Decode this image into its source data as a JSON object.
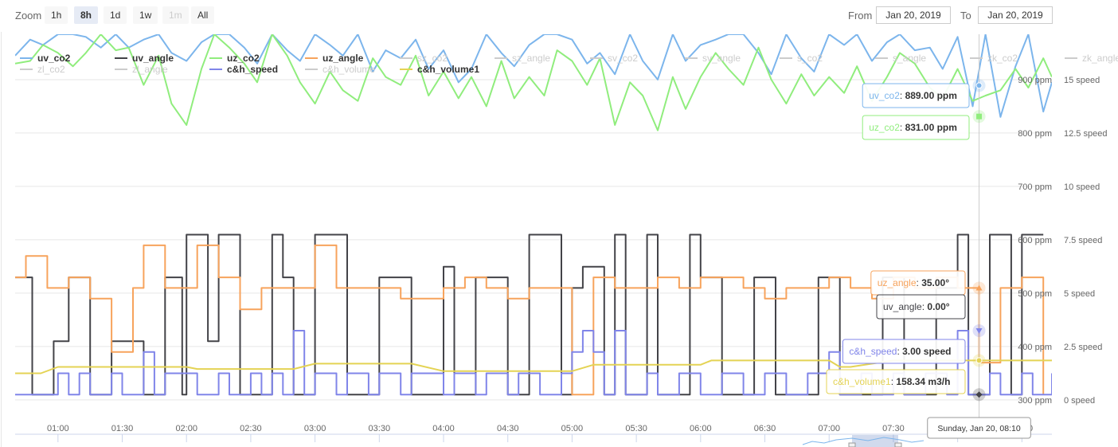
{
  "toolbar": {
    "zoom_label": "Zoom",
    "zoom_buttons": [
      {
        "label": "1h",
        "state": "normal"
      },
      {
        "label": "8h",
        "state": "active"
      },
      {
        "label": "1d",
        "state": "normal"
      },
      {
        "label": "1w",
        "state": "normal"
      },
      {
        "label": "1m",
        "state": "disabled"
      },
      {
        "label": "All",
        "state": "normal"
      }
    ],
    "from_label": "From",
    "from_value": "Jan 20, 2019",
    "to_label": "To",
    "to_value": "Jan 20, 2019"
  },
  "chart_data": {
    "type": "line",
    "title": "",
    "legend": {
      "placement": "top-left",
      "items": [
        {
          "name": "uv_co2",
          "color": "#7cb5ec",
          "visible": true
        },
        {
          "name": "uv_angle",
          "color": "#434348",
          "visible": true
        },
        {
          "name": "uz_co2",
          "color": "#90ed7d",
          "visible": true
        },
        {
          "name": "uz_angle",
          "color": "#f7a35c",
          "visible": true
        },
        {
          "name": "sz_co2",
          "color": "#cccccc",
          "visible": false
        },
        {
          "name": "sz_angle",
          "color": "#cccccc",
          "visible": false
        },
        {
          "name": "sv_co2",
          "color": "#cccccc",
          "visible": false
        },
        {
          "name": "sv_angle",
          "color": "#cccccc",
          "visible": false
        },
        {
          "name": "s_co2",
          "color": "#cccccc",
          "visible": false
        },
        {
          "name": "s_angle",
          "color": "#cccccc",
          "visible": false
        },
        {
          "name": "zk_co2",
          "color": "#cccccc",
          "visible": false
        },
        {
          "name": "zk_angle",
          "color": "#cccccc",
          "visible": false
        },
        {
          "name": "zl_co2",
          "color": "#cccccc",
          "visible": false
        },
        {
          "name": "zl_angle",
          "color": "#cccccc",
          "visible": false
        },
        {
          "name": "c&h_speed",
          "color": "#8085e9",
          "visible": true
        },
        {
          "name": "c&h_volume",
          "color": "#cccccc",
          "visible": false
        },
        {
          "name": "c&h_volume1",
          "color": "#e4d354",
          "visible": true
        }
      ]
    },
    "x_axis": {
      "type": "datetime",
      "range": [
        "00:40",
        "08:44"
      ],
      "ticks": [
        "01:00",
        "01:30",
        "02:00",
        "02:30",
        "03:00",
        "03:30",
        "04:00",
        "04:30",
        "05:00",
        "05:30",
        "06:00",
        "06:30",
        "07:00",
        "07:30",
        "08:00",
        "08:30"
      ]
    },
    "y_axes": [
      {
        "unit": "ppm",
        "range": [
          270,
          985
        ],
        "ticks": [
          "300 ppm",
          "400 ppm",
          "500 ppm",
          "600 ppm",
          "700 ppm",
          "800 ppm",
          "900 ppm"
        ]
      },
      {
        "unit": "speed",
        "range": [
          -1,
          16.9
        ],
        "ticks": [
          "0 speed",
          "2.5 speed",
          "5 speed",
          "7.5 speed",
          "10 speed",
          "12.5 speed",
          "15 speed"
        ]
      }
    ],
    "grid": true,
    "series": [
      {
        "name": "uv_co2",
        "unit": "ppm",
        "axis": "ppm",
        "color": "#7cb5ec",
        "type": "line",
        "x": [
          "00:40",
          "00:47",
          "00:53",
          "01:00",
          "01:07",
          "01:13",
          "01:20",
          "01:27",
          "01:33",
          "01:40",
          "01:47",
          "01:53",
          "02:00",
          "02:07",
          "02:13",
          "02:20",
          "02:27",
          "02:33",
          "02:40",
          "02:47",
          "02:53",
          "03:00",
          "03:07",
          "03:13",
          "03:20",
          "03:27",
          "03:33",
          "03:40",
          "03:47",
          "03:53",
          "04:00",
          "04:07",
          "04:13",
          "04:20",
          "04:27",
          "04:33",
          "04:40",
          "04:47",
          "04:53",
          "05:00",
          "05:07",
          "05:13",
          "05:20",
          "05:27",
          "05:33",
          "05:40",
          "05:47",
          "05:53",
          "06:00",
          "06:07",
          "06:13",
          "06:20",
          "06:27",
          "06:33",
          "06:40",
          "06:47",
          "06:53",
          "07:00",
          "07:07",
          "07:13",
          "07:20",
          "07:27",
          "07:33",
          "07:40",
          "07:47",
          "07:53",
          "08:00",
          "08:07",
          "08:13",
          "08:20",
          "08:27",
          "08:33",
          "08:40",
          "08:44"
        ],
        "y": [
          945,
          975,
          965,
          985,
          985,
          980,
          960,
          985,
          960,
          975,
          985,
          950,
          935,
          970,
          985,
          985,
          960,
          930,
          985,
          955,
          935,
          985,
          965,
          945,
          985,
          915,
          955,
          940,
          975,
          920,
          955,
          895,
          920,
          985,
          950,
          925,
          965,
          985,
          985,
          975,
          930,
          950,
          910,
          985,
          935,
          900,
          985,
          935,
          965,
          975,
          985,
          985,
          950,
          910,
          985,
          940,
          915,
          985,
          965,
          985,
          935,
          970,
          985,
          955,
          960,
          920,
          980,
          850,
          985,
          830,
          925,
          985,
          840,
          895
        ]
      },
      {
        "name": "uz_co2",
        "unit": "ppm",
        "axis": "ppm",
        "color": "#90ed7d",
        "type": "line",
        "x": [
          "00:40",
          "00:47",
          "00:53",
          "01:00",
          "01:07",
          "01:13",
          "01:20",
          "01:27",
          "01:33",
          "01:40",
          "01:47",
          "01:53",
          "02:00",
          "02:07",
          "02:13",
          "02:20",
          "02:27",
          "02:33",
          "02:40",
          "02:47",
          "02:53",
          "03:00",
          "03:07",
          "03:13",
          "03:20",
          "03:27",
          "03:33",
          "03:40",
          "03:47",
          "03:53",
          "04:00",
          "04:07",
          "04:13",
          "04:20",
          "04:27",
          "04:33",
          "04:40",
          "04:47",
          "04:53",
          "05:00",
          "05:07",
          "05:13",
          "05:20",
          "05:27",
          "05:33",
          "05:40",
          "05:47",
          "05:53",
          "06:00",
          "06:07",
          "06:13",
          "06:20",
          "06:27",
          "06:33",
          "06:40",
          "06:47",
          "06:53",
          "07:00",
          "07:07",
          "07:13",
          "07:20",
          "07:27",
          "07:33",
          "07:40",
          "07:47",
          "07:53",
          "08:00",
          "08:07",
          "08:13",
          "08:20",
          "08:27",
          "08:33",
          "08:40",
          "08:44"
        ],
        "y": [
          930,
          935,
          965,
          950,
          925,
          950,
          985,
          955,
          960,
          890,
          945,
          855,
          815,
          920,
          985,
          960,
          930,
          895,
          985,
          945,
          895,
          855,
          915,
          880,
          860,
          940,
          905,
          890,
          945,
          870,
          915,
          865,
          905,
          850,
          935,
          865,
          905,
          870,
          955,
          935,
          890,
          940,
          815,
          895,
          870,
          805,
          905,
          845,
          905,
          950,
          920,
          890,
          960,
          900,
          855,
          910,
          870,
          905,
          875,
          925,
          860,
          905,
          950,
          930,
          885,
          865,
          920,
          860,
          870,
          880,
          920,
          885,
          940,
          905
        ]
      },
      {
        "name": "uv_angle",
        "unit": "°",
        "axis": "speed",
        "color": "#434348",
        "type": "step",
        "x": [
          "00:40",
          "00:45",
          "00:48",
          "00:58",
          "01:05",
          "01:15",
          "01:25",
          "01:40",
          "01:50",
          "01:58",
          "02:00",
          "02:05",
          "02:10",
          "02:15",
          "02:25",
          "02:40",
          "02:45",
          "02:50",
          "03:00",
          "03:15",
          "03:30",
          "03:45",
          "04:00",
          "04:05",
          "04:15",
          "04:30",
          "04:40",
          "04:55",
          "05:00",
          "05:05",
          "05:15",
          "05:20",
          "05:25",
          "05:35",
          "05:40",
          "05:55",
          "06:00",
          "06:10",
          "06:20",
          "06:25",
          "06:35",
          "06:45",
          "06:55",
          "07:05",
          "07:15",
          "07:25",
          "07:35",
          "07:45",
          "07:50",
          "08:00",
          "08:05",
          "08:15",
          "08:25",
          "08:30",
          "08:40"
        ],
        "y": [
          5.5,
          5.5,
          0,
          2.5,
          5.5,
          0,
          2.5,
          0,
          5.5,
          0,
          7.5,
          7.5,
          2.5,
          7.5,
          0,
          7.5,
          5.5,
          0,
          7.5,
          0,
          5.5,
          0,
          6,
          0,
          5.5,
          0,
          7.5,
          0,
          5,
          6,
          0,
          7.5,
          0,
          7.5,
          0,
          7.5,
          5.5,
          0,
          0,
          5.5,
          0,
          0,
          5.5,
          0,
          0,
          5.5,
          0,
          0,
          5,
          7.5,
          0,
          7.5,
          0,
          7.5,
          7.5
        ]
      },
      {
        "name": "uz_angle",
        "unit": "°",
        "axis": "speed",
        "color": "#f7a35c",
        "type": "step",
        "x": [
          "00:40",
          "00:45",
          "00:55",
          "01:05",
          "01:15",
          "01:25",
          "01:35",
          "01:40",
          "01:50",
          "01:58",
          "02:05",
          "02:15",
          "02:25",
          "02:35",
          "02:45",
          "02:55",
          "03:00",
          "03:10",
          "03:20",
          "03:30",
          "03:40",
          "03:50",
          "04:00",
          "04:10",
          "04:20",
          "04:30",
          "04:40",
          "04:50",
          "05:00",
          "05:10",
          "05:20",
          "05:30",
          "05:40",
          "05:50",
          "06:00",
          "06:10",
          "06:20",
          "06:30",
          "06:40",
          "06:50",
          "07:00",
          "07:10",
          "07:20",
          "07:30",
          "07:40",
          "07:50",
          "08:00",
          "08:10",
          "08:20",
          "08:30",
          "08:40"
        ],
        "y": [
          5.5,
          6.5,
          5,
          5.5,
          4.5,
          2,
          5,
          7,
          5,
          5,
          7,
          5.5,
          4,
          5,
          5,
          5,
          7,
          5,
          5,
          5,
          4.5,
          4.5,
          5,
          5.5,
          5,
          4.5,
          5,
          5,
          0,
          5.5,
          5,
          5,
          5.5,
          5,
          5.5,
          5.5,
          5,
          4.5,
          5,
          5,
          5.5,
          5,
          4.5,
          5.5,
          5,
          5.5,
          5,
          1.5,
          5,
          5.5,
          0
        ]
      },
      {
        "name": "c&h_speed",
        "unit": "speed",
        "axis": "speed",
        "color": "#8085e9",
        "type": "step",
        "x": [
          "00:40",
          "00:55",
          "01:00",
          "01:05",
          "01:10",
          "01:15",
          "01:25",
          "01:30",
          "01:40",
          "01:45",
          "01:50",
          "02:05",
          "02:15",
          "02:20",
          "02:30",
          "02:35",
          "02:40",
          "02:45",
          "02:50",
          "02:55",
          "03:00",
          "03:10",
          "03:15",
          "03:25",
          "03:30",
          "03:40",
          "03:45",
          "04:00",
          "04:05",
          "04:15",
          "04:20",
          "04:30",
          "04:35",
          "04:45",
          "04:55",
          "05:00",
          "05:05",
          "05:10",
          "05:15",
          "05:20",
          "05:25",
          "05:35",
          "05:40",
          "05:50",
          "06:00",
          "06:10",
          "06:20",
          "06:30",
          "06:40",
          "06:50",
          "07:00",
          "07:05",
          "07:15",
          "07:20",
          "07:30",
          "07:35",
          "07:45",
          "07:55",
          "08:00",
          "08:05",
          "08:15",
          "08:20",
          "08:30",
          "08:35",
          "08:44"
        ],
        "y": [
          0,
          0,
          1,
          0,
          1,
          0,
          1,
          0,
          2,
          0,
          1,
          0,
          1,
          0,
          1,
          0,
          1,
          0,
          3,
          0,
          1,
          0,
          1,
          0,
          1,
          0,
          1,
          0,
          1,
          0,
          1,
          0,
          1,
          0,
          1,
          2,
          3,
          2,
          0,
          3,
          0,
          1,
          0,
          1,
          0,
          1,
          0,
          1,
          0,
          1,
          2,
          0,
          1,
          0,
          1,
          0,
          1,
          0,
          3,
          0,
          1,
          0,
          1,
          0,
          1
        ]
      },
      {
        "name": "c&h_volume1",
        "unit": "m3/h",
        "axis": "speed",
        "color": "#e4d354",
        "type": "line",
        "x": [
          "00:40",
          "00:45",
          "00:52",
          "01:00",
          "02:00",
          "02:05",
          "02:40",
          "02:50",
          "03:00",
          "03:15",
          "03:45",
          "04:00",
          "04:50",
          "05:00",
          "05:10",
          "05:20",
          "05:40",
          "06:00",
          "06:05",
          "06:30",
          "06:50",
          "07:00",
          "07:05",
          "07:10",
          "07:30",
          "08:00",
          "08:10",
          "08:44"
        ],
        "y": [
          1,
          1,
          1,
          1.3,
          1.3,
          1.2,
          1.2,
          1.2,
          1.45,
          1.45,
          1.45,
          1.1,
          1.1,
          1.1,
          1.4,
          1.4,
          1.4,
          1.4,
          1.6,
          1.6,
          1.6,
          1.6,
          1.3,
          1.3,
          1.6,
          1.6,
          1.6,
          1.6
        ]
      }
    ],
    "tooltips": [
      {
        "series": "uv_co2",
        "label": "uv_co2",
        "value": "889.00 ppm",
        "color": "#7cb5ec",
        "value_num": 889,
        "axis": "ppm"
      },
      {
        "series": "uz_co2",
        "label": "uz_co2",
        "value": "831.00 ppm",
        "color": "#90ed7d",
        "value_num": 831,
        "axis": "ppm"
      },
      {
        "series": "uz_angle",
        "label": "uz_angle",
        "value": "35.00°",
        "color": "#f7a35c",
        "value_num": 5,
        "axis": "speed"
      },
      {
        "series": "uv_angle",
        "label": "uv_angle",
        "value": "0.00°",
        "color": "#434348",
        "value_num": 0,
        "axis": "speed"
      },
      {
        "series": "c&h_speed",
        "label": "c&h_speed",
        "value": "3.00 speed",
        "color": "#8085e9",
        "value_num": 3,
        "axis": "speed"
      },
      {
        "series": "c&h_volume1",
        "label": "c&h_volume1",
        "value": "158.34 m3/h",
        "color": "#e4d354",
        "value_num": 1.6,
        "axis": "speed"
      }
    ],
    "crosshair": {
      "x": "08:10",
      "label": "Sunday, Jan 20, 08:10"
    }
  }
}
